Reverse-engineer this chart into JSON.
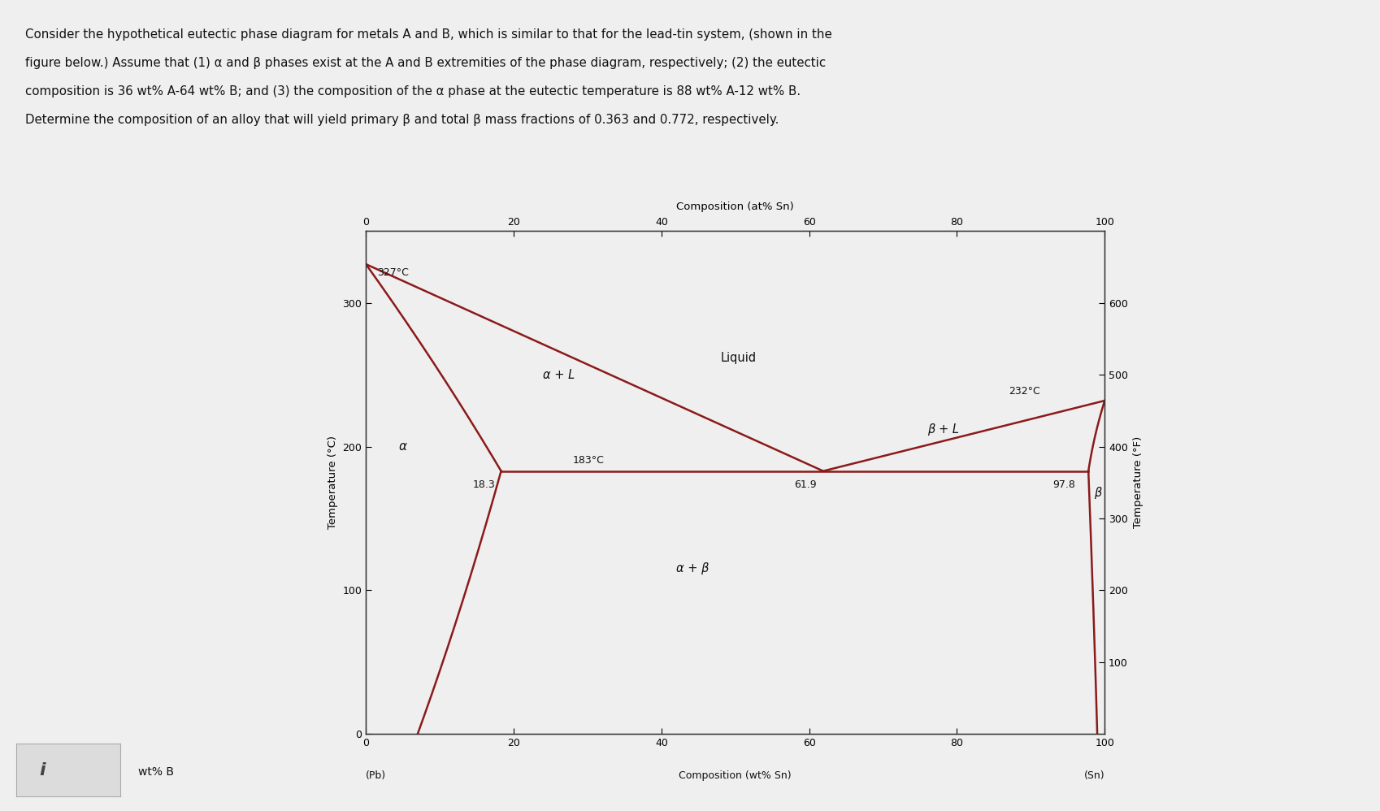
{
  "background_color": "#efefef",
  "plot_bg_color": "#efefef",
  "line_color": "#8B1A1A",
  "axis_color": "#333333",
  "title_lines": [
    "Consider the hypothetical eutectic phase diagram for metals A and B, which is similar to that for the lead-tin system, (shown in the",
    "figure below.) Assume that (1) α and β phases exist at the A and B extremities of the phase diagram, respectively; (2) the eutectic",
    "composition is 36 wt% A-64 wt% B; and (3) the composition of the α phase at the eutectic temperature is 88 wt% A-12 wt% B.",
    "Determine the composition of an alloy that will yield primary β and total β mass fractions of 0.363 and 0.772, respectively."
  ],
  "xlabel_bottom": "Composition (wt% Sn)",
  "xlabel_top": "Composition (at% Sn)",
  "ylabel_left": "Temperature (°C)",
  "ylabel_right": "Temperature (°F)",
  "label_pb": "(Pb)",
  "label_sn": "(Sn)",
  "wt_b_label": "wt% B",
  "ann_327": "327°C",
  "ann_183": "183°C",
  "ann_232": "232°C",
  "ann_18": "18.3",
  "ann_619": "61.9",
  "ann_978": "97.8",
  "ann_alpha": "α",
  "ann_alphaL": "α + L",
  "ann_liquid": "Liquid",
  "ann_betaL": "β + L",
  "ann_alphabeta": "α + β",
  "ann_beta": "β"
}
